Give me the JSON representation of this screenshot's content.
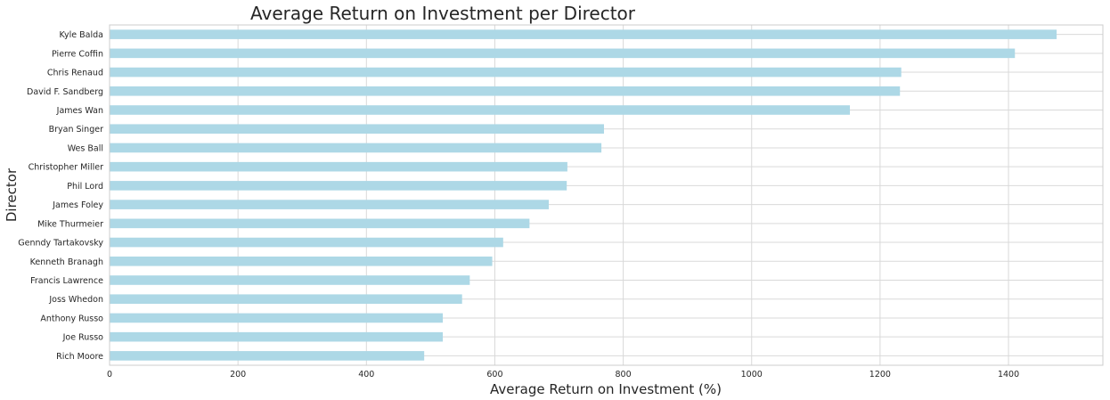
{
  "chart_data": {
    "type": "bar",
    "orientation": "horizontal",
    "title": "Average Return on Investment per Director",
    "xlabel": "Average Return on Investment (%)",
    "ylabel": "Director",
    "categories": [
      "Kyle Balda",
      "Pierre Coffin",
      "Chris Renaud",
      "David F. Sandberg",
      "James Wan",
      "Bryan Singer",
      "Wes Ball",
      "Christopher Miller",
      "Phil Lord",
      "James Foley",
      "Mike Thurmeier",
      "Genndy Tartakovsky",
      "Kenneth Branagh",
      "Francis Lawrence",
      "Joss Whedon",
      "Anthony Russo",
      "Joe Russo",
      "Rich Moore"
    ],
    "values": [
      1475,
      1410,
      1233,
      1231,
      1153,
      770,
      766,
      713,
      712,
      684,
      654,
      613,
      596,
      561,
      549,
      519,
      519,
      490
    ],
    "xlim": [
      0,
      1547
    ],
    "xticks": [
      0,
      200,
      400,
      600,
      800,
      1000,
      1200,
      1400
    ],
    "grid": true,
    "colors": {
      "bar": "#add8e6",
      "grid": "#d9d9d9",
      "frame": "#cccccc"
    }
  }
}
